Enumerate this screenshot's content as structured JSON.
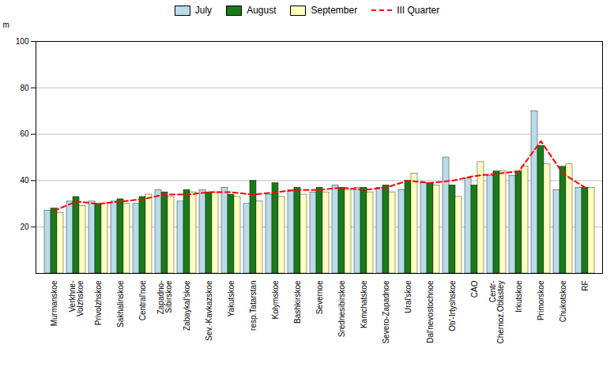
{
  "chart_data": {
    "type": "bar",
    "y_label": "m",
    "categories": [
      "Murmanskoe",
      "Verkhne-\nVolzhskoe",
      "Privolzhskoe",
      "Sakhalinskoe",
      "Central'noe",
      "Zapadno-\nSibirskoe",
      "Zabaykal'skoe",
      "Sev.-Kavkazskoe",
      "Yakutskoe",
      "resp.Tatarstan",
      "Kolymskoe",
      "Bashkirskoe",
      "Severnoe",
      "Srednesibirskoe",
      "Kamchatskoe",
      "Severo-Zapadnoe",
      "Ural'skoe",
      "Dal'nevostochnoe",
      "Ob'-Irtyshskoe",
      "CAO",
      "Centr-\nChernoz.Oblastey",
      "Irkutskoe",
      "Primorskoe",
      "Chukotskoe",
      "RF"
    ],
    "series": [
      {
        "name": "July",
        "type": "bar",
        "color": "#b8dce8",
        "values": [
          27,
          31,
          31,
          31,
          30,
          36,
          31,
          36,
          37,
          30,
          34,
          36,
          35,
          38,
          37,
          37,
          36,
          39,
          50,
          41,
          42,
          42,
          70,
          36,
          37
        ]
      },
      {
        "name": "August",
        "type": "bar",
        "color": "#1a7a1a",
        "values": [
          28,
          33,
          30,
          32,
          33,
          35,
          36,
          35,
          34,
          40,
          39,
          37,
          37,
          37,
          37,
          38,
          40,
          39,
          38,
          38,
          44,
          44,
          55,
          46,
          37
        ]
      },
      {
        "name": "September",
        "type": "bar",
        "color": "#ffffc0",
        "values": [
          26,
          29,
          30,
          30,
          34,
          33,
          35,
          35,
          33,
          31,
          33,
          34,
          35,
          36,
          35,
          35,
          43,
          38,
          33,
          48,
          44,
          46,
          47,
          47,
          37
        ]
      },
      {
        "name": "III Quarter",
        "type": "line",
        "line_style": "dashed",
        "color": "#ff0000",
        "values": [
          27,
          31,
          30,
          31,
          32,
          34,
          34,
          35,
          35,
          34,
          35,
          36,
          36,
          37,
          36,
          37,
          40,
          39,
          40,
          42,
          43,
          44,
          57,
          43,
          37
        ]
      }
    ],
    "ylim": [
      0,
      100
    ],
    "yticks": [
      20,
      40,
      60,
      80,
      100
    ],
    "grid": true,
    "legend": "top"
  }
}
